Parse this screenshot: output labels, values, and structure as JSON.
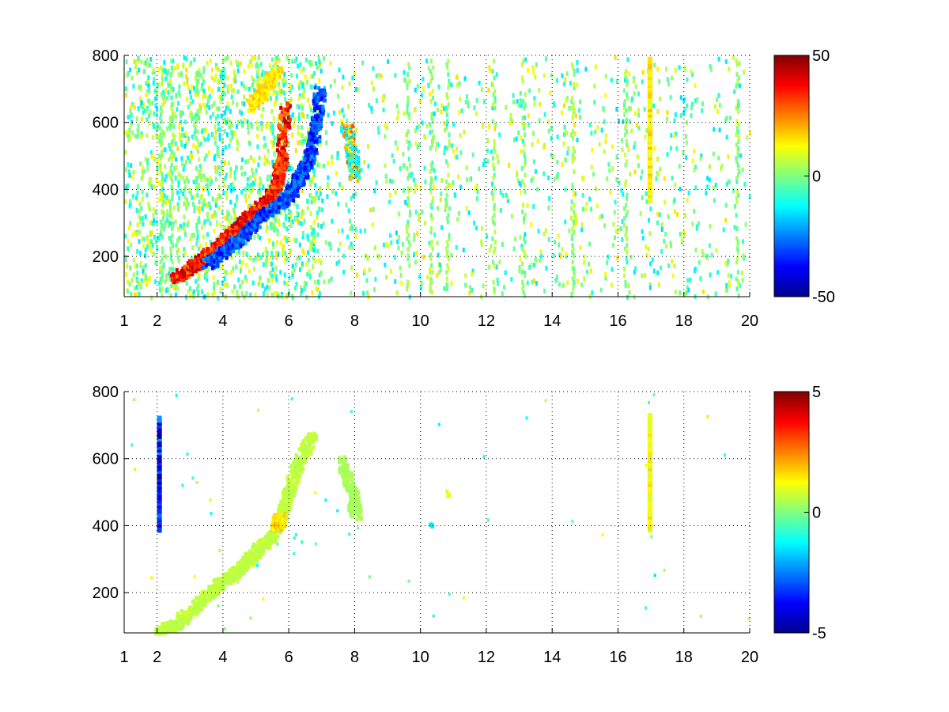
{
  "chart_data": [
    {
      "type": "heatmap",
      "title": "",
      "xlabel": "",
      "ylabel": "",
      "xlim": [
        1,
        20
      ],
      "ylim": [
        80,
        800
      ],
      "x_ticks": [
        "1",
        "2",
        "4",
        "6",
        "8",
        "10",
        "12",
        "14",
        "16",
        "18",
        "20"
      ],
      "x_tick_values": [
        1,
        2,
        4,
        6,
        8,
        10,
        12,
        14,
        16,
        18,
        20
      ],
      "y_ticks": [
        "200",
        "400",
        "600",
        "800"
      ],
      "y_tick_values": [
        200,
        400,
        600,
        800
      ],
      "grid": true,
      "colormap": "jet",
      "colorbar": {
        "range": [
          -50,
          50
        ],
        "ticks": [
          "-50",
          "0",
          "50"
        ],
        "tick_values": [
          -50,
          0,
          50
        ]
      },
      "features": [
        {
          "name": "rising ridge",
          "sign": "positive",
          "peak": 45,
          "points": [
            [
              2.5,
              140
            ],
            [
              3.0,
              170
            ],
            [
              3.5,
              210
            ],
            [
              4.0,
              250
            ],
            [
              4.5,
              300
            ],
            [
              5.0,
              345
            ],
            [
              5.4,
              380
            ],
            [
              5.6,
              420
            ],
            [
              5.75,
              500
            ],
            [
              5.85,
              650
            ]
          ]
        },
        {
          "name": "rising trough",
          "sign": "negative",
          "peak": -40,
          "points": [
            [
              3.5,
              180
            ],
            [
              4.0,
              220
            ],
            [
              4.5,
              260
            ],
            [
              5.0,
              310
            ],
            [
              5.5,
              350
            ],
            [
              6.0,
              390
            ],
            [
              6.3,
              440
            ],
            [
              6.6,
              500
            ],
            [
              6.8,
              600
            ],
            [
              6.9,
              700
            ]
          ]
        },
        {
          "name": "upper band",
          "sign": "positive",
          "peak": 20,
          "points": [
            [
              4.8,
              650
            ],
            [
              5.2,
              700
            ],
            [
              5.6,
              760
            ]
          ]
        },
        {
          "name": "patch near 8",
          "sign": "mixed",
          "peak": 30,
          "points": [
            [
              7.7,
              600
            ],
            [
              7.9,
              500
            ],
            [
              8.0,
              440
            ]
          ]
        },
        {
          "name": "column near 16.9",
          "sign": "positive",
          "peak": 18,
          "x": 16.9,
          "y_range": [
            380,
            800
          ]
        }
      ]
    },
    {
      "type": "heatmap",
      "title": "",
      "xlabel": "",
      "ylabel": "",
      "xlim": [
        1,
        20
      ],
      "ylim": [
        80,
        800
      ],
      "x_ticks": [
        "1",
        "2",
        "4",
        "6",
        "8",
        "10",
        "12",
        "14",
        "16",
        "18",
        "20"
      ],
      "x_tick_values": [
        1,
        2,
        4,
        6,
        8,
        10,
        12,
        14,
        16,
        18,
        20
      ],
      "y_ticks": [
        "200",
        "400",
        "600",
        "800"
      ],
      "y_tick_values": [
        200,
        400,
        600,
        800
      ],
      "grid": true,
      "colormap": "jet",
      "colorbar": {
        "range": [
          -5,
          5
        ],
        "ticks": [
          "-5",
          "0",
          "5"
        ],
        "tick_values": [
          -5,
          0,
          5
        ]
      },
      "features": [
        {
          "name": "rising band",
          "sign": "near zero",
          "peak": 0.8,
          "points": [
            [
              2.0,
              85
            ],
            [
              2.5,
              110
            ],
            [
              3.0,
              150
            ],
            [
              3.5,
              200
            ],
            [
              4.0,
              240
            ],
            [
              4.5,
              280
            ],
            [
              5.0,
              330
            ],
            [
              5.5,
              380
            ],
            [
              5.8,
              450
            ],
            [
              6.0,
              520
            ],
            [
              6.3,
              600
            ],
            [
              6.7,
              680
            ]
          ]
        },
        {
          "name": "yellow spot",
          "sign": "positive",
          "peak": 2,
          "points": [
            [
              5.6,
              400
            ],
            [
              5.7,
              430
            ]
          ]
        },
        {
          "name": "blue column near 2",
          "sign": "negative",
          "peak": -4.5,
          "x": 2.0,
          "y_range": [
            400,
            730
          ]
        },
        {
          "name": "column near 16.9",
          "sign": "positive",
          "peak": 1.5,
          "x": 16.9,
          "y_range": [
            400,
            740
          ]
        },
        {
          "name": "patch near 8",
          "sign": "near zero",
          "peak": 0.5,
          "points": [
            [
              7.6,
              600
            ],
            [
              7.9,
              500
            ],
            [
              8.0,
              430
            ]
          ]
        },
        {
          "name": "spot near 10.3",
          "sign": "negative",
          "peak": -1.5,
          "points": [
            [
              10.3,
              400
            ]
          ]
        },
        {
          "name": "spot near 10.8",
          "sign": "positive",
          "peak": 1,
          "points": [
            [
              10.8,
              500
            ]
          ]
        }
      ]
    }
  ]
}
